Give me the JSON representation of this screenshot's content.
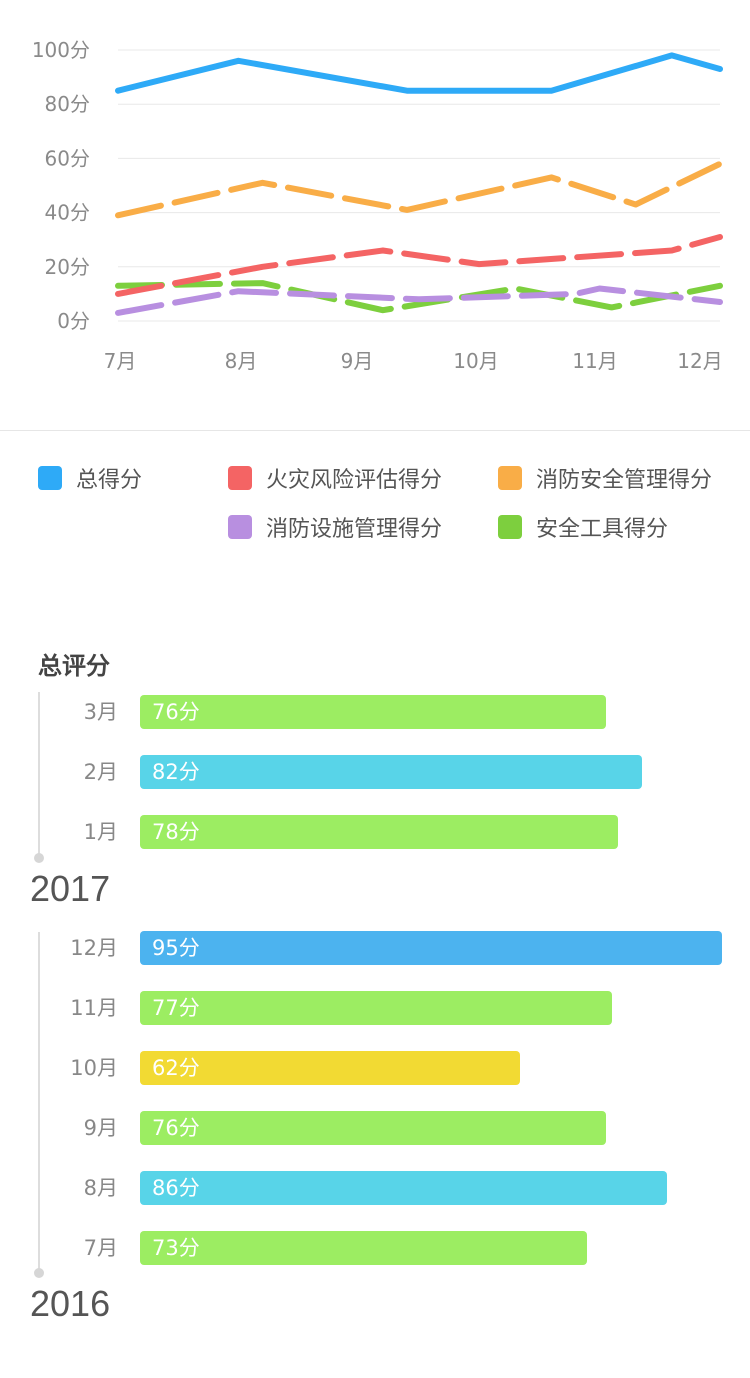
{
  "chart_data": [
    {
      "type": "line",
      "x": [
        "7月",
        "8月",
        "9月",
        "10月",
        "11月",
        "12月"
      ],
      "xtick_labels": [
        "7月",
        "8月",
        "9月",
        "10月",
        "11月",
        "12月"
      ],
      "ytick_labels": [
        "100分",
        "80分",
        "60分",
        "40分",
        "20分",
        "0分"
      ],
      "ylim": [
        0,
        100
      ],
      "grid": true,
      "legend_position": "bottom",
      "series": [
        {
          "name": "总得分",
          "color": "#2eaaf7",
          "style": "solid",
          "points": [
            [
              7.0,
              85
            ],
            [
              8.0,
              96
            ],
            [
              9.4,
              85
            ],
            [
              10.6,
              85
            ],
            [
              11.6,
              98
            ],
            [
              12.0,
              93
            ]
          ]
        },
        {
          "name": "火灾风险评估得分",
          "color": "#f46464",
          "style": "dashed",
          "points": [
            [
              7.0,
              10
            ],
            [
              8.2,
              20
            ],
            [
              9.2,
              26
            ],
            [
              10.0,
              21
            ],
            [
              11.6,
              26
            ],
            [
              12.0,
              31
            ]
          ]
        },
        {
          "name": "消防安全管理得分",
          "color": "#f9ad47",
          "style": "dashed",
          "points": [
            [
              7.0,
              39
            ],
            [
              8.2,
              51
            ],
            [
              9.4,
              41
            ],
            [
              10.6,
              53
            ],
            [
              11.3,
              43
            ],
            [
              12.0,
              58
            ]
          ]
        },
        {
          "name": "消防设施管理得分",
          "color": "#b88fe0",
          "style": "dashed",
          "points": [
            [
              7.0,
              3
            ],
            [
              8.0,
              11
            ],
            [
              9.5,
              8
            ],
            [
              10.8,
              10
            ],
            [
              11.0,
              12
            ],
            [
              12.0,
              7
            ]
          ]
        },
        {
          "name": "安全工具得分",
          "color": "#7dcf3e",
          "style": "dashed",
          "points": [
            [
              7.0,
              13
            ],
            [
              8.2,
              14
            ],
            [
              9.2,
              4
            ],
            [
              10.3,
              12
            ],
            [
              11.1,
              5
            ],
            [
              12.0,
              13
            ]
          ]
        }
      ]
    },
    {
      "type": "bar",
      "orientation": "horizontal",
      "title": "总评分",
      "xlim": [
        0,
        95
      ],
      "groups": [
        {
          "year": "2017",
          "bars": [
            {
              "category": "3月",
              "value": 76,
              "label": "76分",
              "color": "#9ced62"
            },
            {
              "category": "2月",
              "value": 82,
              "label": "82分",
              "color": "#58d4e8"
            },
            {
              "category": "1月",
              "value": 78,
              "label": "78分",
              "color": "#9ced62"
            }
          ]
        },
        {
          "year": "2016",
          "bars": [
            {
              "category": "12月",
              "value": 95,
              "label": "95分",
              "color": "#4cb3ef"
            },
            {
              "category": "11月",
              "value": 77,
              "label": "77分",
              "color": "#9ced62"
            },
            {
              "category": "10月",
              "value": 62,
              "label": "62分",
              "color": "#f2da33"
            },
            {
              "category": "9月",
              "value": 76,
              "label": "76分",
              "color": "#9ced62"
            },
            {
              "category": "8月",
              "value": 86,
              "label": "86分",
              "color": "#58d4e8"
            },
            {
              "category": "7月",
              "value": 73,
              "label": "73分",
              "color": "#9ced62"
            }
          ]
        }
      ]
    }
  ],
  "legend": [
    {
      "label": "总得分",
      "color": "#2eaaf7"
    },
    {
      "label": "火灾风险评估得分",
      "color": "#f46464"
    },
    {
      "label": "消防安全管理得分",
      "color": "#f9ad47"
    },
    {
      "label": "消防设施管理得分",
      "color": "#b88fe0"
    },
    {
      "label": "安全工具得分",
      "color": "#7dcf3e"
    }
  ]
}
